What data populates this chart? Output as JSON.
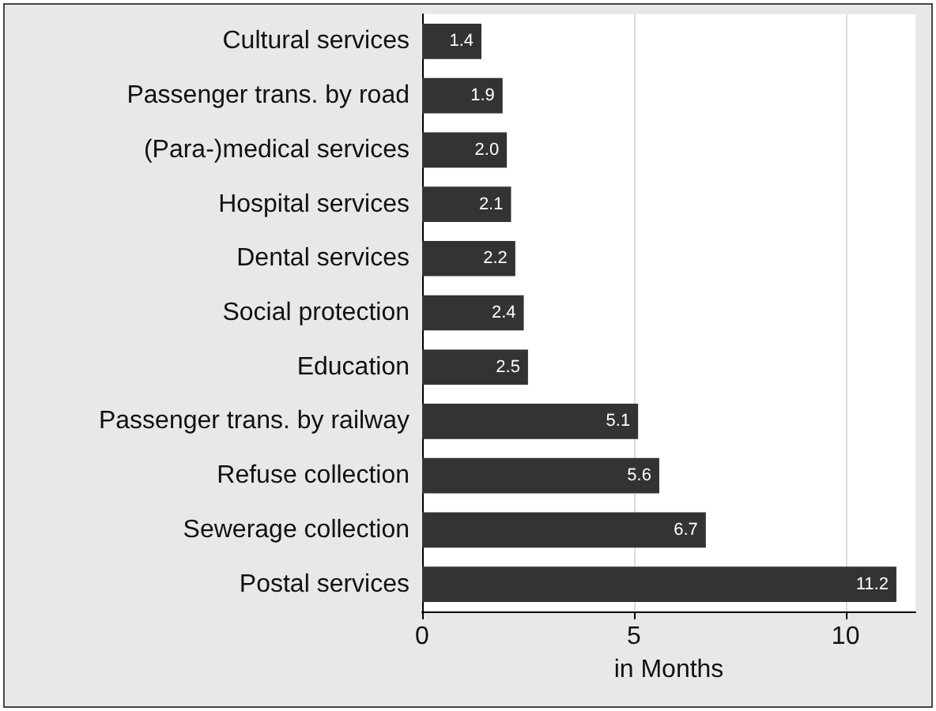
{
  "chart_data": {
    "type": "bar",
    "orientation": "horizontal",
    "xlabel": "in Months",
    "categories": [
      "Cultural services",
      "Passenger trans. by road",
      "(Para-)medical services",
      "Hospital services",
      "Dental services",
      "Social protection",
      "Education",
      "Passenger trans. by railway",
      "Refuse collection",
      "Sewerage collection",
      "Postal services"
    ],
    "values": [
      1.4,
      1.9,
      2.0,
      2.1,
      2.2,
      2.4,
      2.5,
      5.1,
      5.6,
      6.7,
      11.2
    ],
    "value_labels": [
      "1.4",
      "1.9",
      "2.0",
      "2.1",
      "2.2",
      "2.4",
      "2.5",
      "5.1",
      "5.6",
      "6.7",
      "11.2"
    ],
    "color": "#333333",
    "xlim": [
      0,
      11.65
    ],
    "xticks": [
      0,
      5,
      10
    ],
    "grid": "x"
  }
}
